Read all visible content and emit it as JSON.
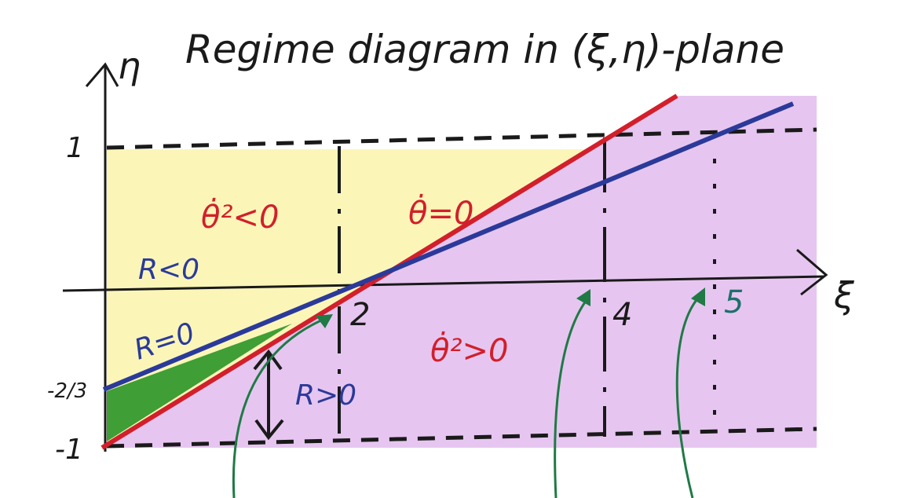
{
  "title": "Regime diagram in (ξ,η)-plane",
  "axes": {
    "x_label": "ξ",
    "y_label": "η",
    "y_ticks": [
      "1",
      "-2/3",
      "-1"
    ]
  },
  "regions": {
    "theta_sq_negative": "θ̇²<0",
    "theta_dot_zero": "θ̇=0",
    "theta_sq_positive": "θ̇²>0",
    "r_negative": "R<0",
    "r_zero": "R=0",
    "r_positive": "R>0"
  },
  "markers": [
    "2",
    "4",
    "5"
  ],
  "colors": {
    "yellow_region": "#fbf6b8",
    "purple_region": "#e6c6f0",
    "green_region": "#3f9e35",
    "red_line": "#d21f2b",
    "blue_line": "#2b3a9a",
    "arrow_green": "#1f7a45"
  }
}
